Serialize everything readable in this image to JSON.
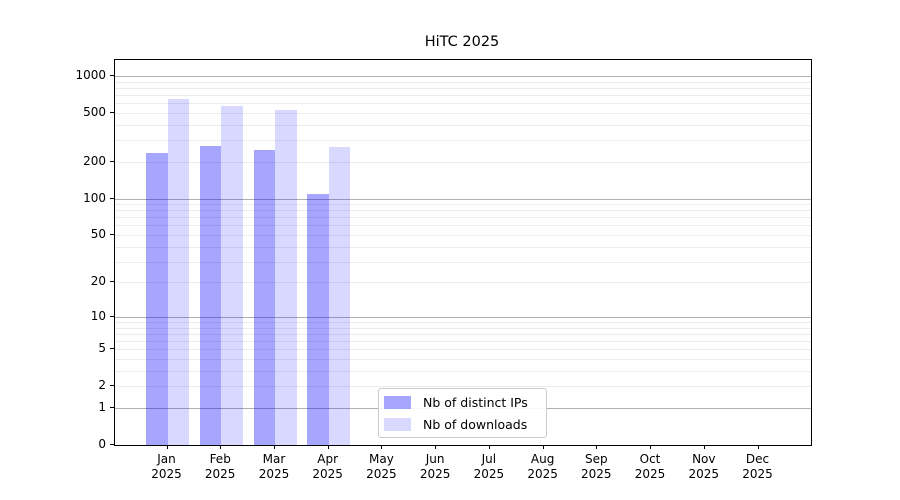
{
  "title": "HiTC 2025",
  "chart_data": {
    "type": "bar",
    "title": "HiTC 2025",
    "categories": [
      "Jan 2025",
      "Feb 2025",
      "Mar 2025",
      "Apr 2025",
      "May 2025",
      "Jun 2025",
      "Jul 2025",
      "Aug 2025",
      "Sep 2025",
      "Oct 2025",
      "Nov 2025",
      "Dec 2025"
    ],
    "x_tick_months": [
      "Jan",
      "Feb",
      "Mar",
      "Apr",
      "May",
      "Jun",
      "Jul",
      "Aug",
      "Sep",
      "Oct",
      "Nov",
      "Dec"
    ],
    "x_tick_year": "2025",
    "series": [
      {
        "name": "Nb of distinct IPs",
        "color": "rgba(0,0,255,0.35)",
        "values": [
          235,
          268,
          250,
          108,
          null,
          null,
          null,
          null,
          null,
          null,
          null,
          null
        ]
      },
      {
        "name": "Nb of downloads",
        "color": "rgba(0,0,255,0.15)",
        "values": [
          645,
          570,
          528,
          262,
          null,
          null,
          null,
          null,
          null,
          null,
          null,
          null
        ]
      }
    ],
    "xlabel": "",
    "ylabel": "",
    "y_scale": "log1p",
    "y_ticks": [
      0,
      1,
      2,
      5,
      10,
      20,
      50,
      100,
      200,
      500,
      1000
    ],
    "ylim": [
      0,
      1200
    ],
    "grid": "major-and-minor horizontal",
    "legend_position": "lower center",
    "colors": {
      "bar_distinct_ips": "rgba(0,0,255,0.35)",
      "bar_downloads": "rgba(0,0,255,0.15)",
      "grid_major": "#b0b0b0",
      "grid_minor": "#ececec",
      "spine": "#000000",
      "legend_border": "#cccccc"
    }
  },
  "legend": {
    "items": [
      {
        "label": "Nb of distinct IPs"
      },
      {
        "label": "Nb of downloads"
      }
    ]
  }
}
